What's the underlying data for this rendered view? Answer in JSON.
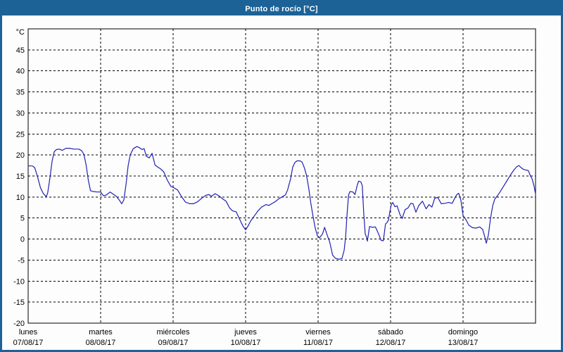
{
  "window": {
    "title": "Punto de rocío [°C]"
  },
  "colors": {
    "frame": "#1c6296",
    "titlebar_bg": "#1c6296",
    "title_text": "#ffffff",
    "panel_bg": "#fdfdfd",
    "plot_border": "#000000",
    "grid": "#000000",
    "line": "#2121b2",
    "label_text": "#000000"
  },
  "chart_data": {
    "type": "line",
    "title": "Punto de rocío [°C]",
    "ylabel": "°C",
    "xlabel": "",
    "ylim": [
      -20,
      50
    ],
    "yticks": [
      45,
      40,
      35,
      30,
      25,
      20,
      15,
      10,
      5,
      0,
      -5,
      -10,
      -15,
      -20
    ],
    "grid": true,
    "legend": "none",
    "x_axis": {
      "days": [
        {
          "name": "lunes",
          "date": "07/08/17"
        },
        {
          "name": "martes",
          "date": "08/08/17"
        },
        {
          "name": "miércoles",
          "date": "09/08/17"
        },
        {
          "name": "jueves",
          "date": "10/08/17"
        },
        {
          "name": "viernes",
          "date": "11/08/17"
        },
        {
          "name": "sábado",
          "date": "12/08/17"
        },
        {
          "name": "domingo",
          "date": "13/08/17"
        }
      ]
    },
    "series": [
      {
        "name": "Punto de rocío",
        "color": "#2121b2",
        "points": [
          [
            0.0,
            17.4
          ],
          [
            0.06,
            17.4
          ],
          [
            0.09,
            17.0
          ],
          [
            0.13,
            14.8
          ],
          [
            0.17,
            12.2
          ],
          [
            0.21,
            10.8
          ],
          [
            0.25,
            10.1
          ],
          [
            0.27,
            11.0
          ],
          [
            0.3,
            14.5
          ],
          [
            0.33,
            18.5
          ],
          [
            0.36,
            20.8
          ],
          [
            0.39,
            21.3
          ],
          [
            0.43,
            21.4
          ],
          [
            0.47,
            21.1
          ],
          [
            0.52,
            21.6
          ],
          [
            0.57,
            21.6
          ],
          [
            0.63,
            21.4
          ],
          [
            0.7,
            21.4
          ],
          [
            0.74,
            21.0
          ],
          [
            0.77,
            20.1
          ],
          [
            0.8,
            17.6
          ],
          [
            0.83,
            14.0
          ],
          [
            0.86,
            11.5
          ],
          [
            0.9,
            11.3
          ],
          [
            0.95,
            11.2
          ],
          [
            1.0,
            11.2
          ],
          [
            1.04,
            10.3
          ],
          [
            1.08,
            10.5
          ],
          [
            1.13,
            11.2
          ],
          [
            1.18,
            10.6
          ],
          [
            1.22,
            10.1
          ],
          [
            1.26,
            9.2
          ],
          [
            1.29,
            8.4
          ],
          [
            1.32,
            9.3
          ],
          [
            1.35,
            13.0
          ],
          [
            1.38,
            17.5
          ],
          [
            1.41,
            20.1
          ],
          [
            1.45,
            21.5
          ],
          [
            1.5,
            22.0
          ],
          [
            1.53,
            21.8
          ],
          [
            1.57,
            21.3
          ],
          [
            1.6,
            21.5
          ],
          [
            1.63,
            19.7
          ],
          [
            1.67,
            19.3
          ],
          [
            1.71,
            20.4
          ],
          [
            1.75,
            17.6
          ],
          [
            1.79,
            17.1
          ],
          [
            1.82,
            16.8
          ],
          [
            1.87,
            16.0
          ],
          [
            1.92,
            14.0
          ],
          [
            1.97,
            12.5
          ],
          [
            2.0,
            12.3
          ],
          [
            2.06,
            11.7
          ],
          [
            2.12,
            10.0
          ],
          [
            2.17,
            8.8
          ],
          [
            2.23,
            8.4
          ],
          [
            2.28,
            8.4
          ],
          [
            2.34,
            8.9
          ],
          [
            2.4,
            9.8
          ],
          [
            2.45,
            10.4
          ],
          [
            2.49,
            10.6
          ],
          [
            2.53,
            10.2
          ],
          [
            2.58,
            10.8
          ],
          [
            2.63,
            10.3
          ],
          [
            2.68,
            9.6
          ],
          [
            2.73,
            9.0
          ],
          [
            2.78,
            7.4
          ],
          [
            2.82,
            6.7
          ],
          [
            2.87,
            6.5
          ],
          [
            2.91,
            5.0
          ],
          [
            2.94,
            3.9
          ],
          [
            2.97,
            2.9
          ],
          [
            3.0,
            2.2
          ],
          [
            3.03,
            3.0
          ],
          [
            3.07,
            4.3
          ],
          [
            3.12,
            5.5
          ],
          [
            3.17,
            6.7
          ],
          [
            3.22,
            7.6
          ],
          [
            3.28,
            8.2
          ],
          [
            3.32,
            8.0
          ],
          [
            3.36,
            8.4
          ],
          [
            3.41,
            8.9
          ],
          [
            3.46,
            9.6
          ],
          [
            3.51,
            10.1
          ],
          [
            3.55,
            10.5
          ],
          [
            3.58,
            11.7
          ],
          [
            3.62,
            14.3
          ],
          [
            3.65,
            17.1
          ],
          [
            3.68,
            18.2
          ],
          [
            3.71,
            18.6
          ],
          [
            3.75,
            18.6
          ],
          [
            3.78,
            18.3
          ],
          [
            3.81,
            17.0
          ],
          [
            3.84,
            15.2
          ],
          [
            3.87,
            12.2
          ],
          [
            3.9,
            8.5
          ],
          [
            3.93,
            5.4
          ],
          [
            3.96,
            2.6
          ],
          [
            3.99,
            0.8
          ],
          [
            4.02,
            0.3
          ],
          [
            4.06,
            1.2
          ],
          [
            4.09,
            2.8
          ],
          [
            4.12,
            1.2
          ],
          [
            4.16,
            -0.7
          ],
          [
            4.2,
            -3.8
          ],
          [
            4.24,
            -4.6
          ],
          [
            4.29,
            -4.8
          ],
          [
            4.33,
            -4.6
          ],
          [
            4.36,
            -2.6
          ],
          [
            4.38,
            0.5
          ],
          [
            4.4,
            6.0
          ],
          [
            4.42,
            10.5
          ],
          [
            4.44,
            11.3
          ],
          [
            4.48,
            11.2
          ],
          [
            4.51,
            10.6
          ],
          [
            4.54,
            12.8
          ],
          [
            4.56,
            13.8
          ],
          [
            4.59,
            13.6
          ],
          [
            4.61,
            12.7
          ],
          [
            4.63,
            6.0
          ],
          [
            4.65,
            1.2
          ],
          [
            4.67,
            0.4
          ],
          [
            4.68,
            -0.5
          ],
          [
            4.71,
            3.0
          ],
          [
            4.75,
            2.8
          ],
          [
            4.79,
            2.9
          ],
          [
            4.83,
            1.4
          ],
          [
            4.87,
            -0.3
          ],
          [
            4.9,
            -0.4
          ],
          [
            4.93,
            3.6
          ],
          [
            4.95,
            3.9
          ],
          [
            4.97,
            4.5
          ],
          [
            4.99,
            6.5
          ],
          [
            5.01,
            8.2
          ],
          [
            5.03,
            8.7
          ],
          [
            5.06,
            7.7
          ],
          [
            5.09,
            7.9
          ],
          [
            5.13,
            5.8
          ],
          [
            5.16,
            4.9
          ],
          [
            5.2,
            7.0
          ],
          [
            5.24,
            7.4
          ],
          [
            5.28,
            8.5
          ],
          [
            5.31,
            8.4
          ],
          [
            5.35,
            6.4
          ],
          [
            5.39,
            8.0
          ],
          [
            5.44,
            9.0
          ],
          [
            5.49,
            7.2
          ],
          [
            5.53,
            8.2
          ],
          [
            5.57,
            7.6
          ],
          [
            5.61,
            9.7
          ],
          [
            5.65,
            9.9
          ],
          [
            5.7,
            8.4
          ],
          [
            5.75,
            8.5
          ],
          [
            5.8,
            8.7
          ],
          [
            5.85,
            8.5
          ],
          [
            5.91,
            10.5
          ],
          [
            5.94,
            10.9
          ],
          [
            5.97,
            9.2
          ],
          [
            6.0,
            5.6
          ],
          [
            6.04,
            4.6
          ],
          [
            6.08,
            3.3
          ],
          [
            6.13,
            2.7
          ],
          [
            6.18,
            2.6
          ],
          [
            6.23,
            2.9
          ],
          [
            6.27,
            2.3
          ],
          [
            6.3,
            0.5
          ],
          [
            6.32,
            -1.0
          ],
          [
            6.35,
            1.0
          ],
          [
            6.38,
            5.0
          ],
          [
            6.41,
            8.0
          ],
          [
            6.44,
            9.6
          ],
          [
            6.47,
            10.2
          ],
          [
            6.51,
            11.2
          ],
          [
            6.56,
            12.6
          ],
          [
            6.61,
            14.0
          ],
          [
            6.66,
            15.4
          ],
          [
            6.7,
            16.4
          ],
          [
            6.74,
            17.2
          ],
          [
            6.77,
            17.5
          ],
          [
            6.8,
            17.0
          ],
          [
            6.83,
            16.6
          ],
          [
            6.87,
            16.4
          ],
          [
            6.9,
            16.3
          ],
          [
            6.93,
            15.0
          ],
          [
            6.95,
            14.4
          ],
          [
            6.98,
            12.6
          ],
          [
            7.0,
            10.7
          ]
        ]
      }
    ]
  }
}
